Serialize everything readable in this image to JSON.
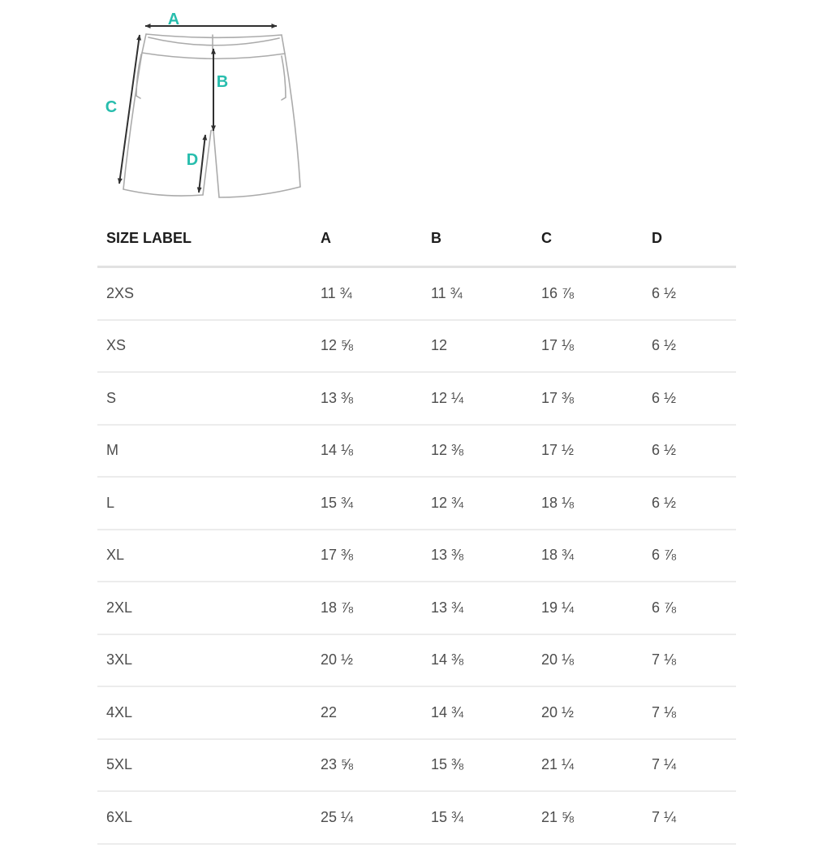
{
  "colors": {
    "accent": "#27bdad",
    "diagram_outline": "#ababab",
    "arrow": "#303030",
    "header_border": "#e2e2e2",
    "row_border": "#ececec"
  },
  "diagram": {
    "labels": {
      "a": "A",
      "b": "B",
      "c": "C",
      "d": "D"
    }
  },
  "table": {
    "columns": [
      "SIZE LABEL",
      "A",
      "B",
      "C",
      "D"
    ],
    "rows": [
      {
        "size": "2XS",
        "a": "11 ¾",
        "b": "11 ¾",
        "c": "16 ⅞",
        "d": "6 ½"
      },
      {
        "size": "XS",
        "a": "12 ⅝",
        "b": "12",
        "c": "17 ⅛",
        "d": "6 ½"
      },
      {
        "size": "S",
        "a": "13 ⅜",
        "b": "12 ¼",
        "c": "17 ⅜",
        "d": "6 ½"
      },
      {
        "size": "M",
        "a": "14 ⅛",
        "b": "12 ⅜",
        "c": "17 ½",
        "d": "6 ½"
      },
      {
        "size": "L",
        "a": "15 ¾",
        "b": "12 ¾",
        "c": "18 ⅛",
        "d": "6 ½"
      },
      {
        "size": "XL",
        "a": "17 ⅜",
        "b": "13 ⅜",
        "c": "18 ¾",
        "d": "6 ⅞"
      },
      {
        "size": "2XL",
        "a": "18 ⅞",
        "b": "13 ¾",
        "c": "19 ¼",
        "d": "6 ⅞"
      },
      {
        "size": "3XL",
        "a": "20 ½",
        "b": "14 ⅜",
        "c": "20 ⅛",
        "d": "7 ⅛"
      },
      {
        "size": "4XL",
        "a": "22",
        "b": "14 ¾",
        "c": "20 ½",
        "d": "7 ⅛"
      },
      {
        "size": "5XL",
        "a": "23 ⅝",
        "b": "15 ⅜",
        "c": "21 ¼",
        "d": "7 ¼"
      },
      {
        "size": "6XL",
        "a": "25 ¼",
        "b": "15 ¾",
        "c": "21 ⅝",
        "d": "7 ¼"
      }
    ]
  }
}
